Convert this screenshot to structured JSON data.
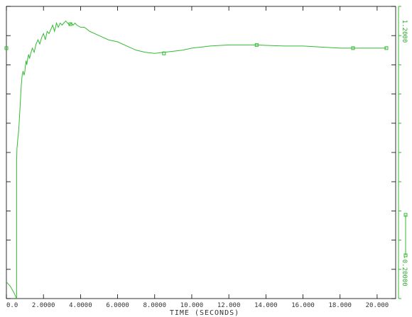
{
  "chart_data": {
    "type": "line",
    "title": "",
    "xlabel": "TIME (SECONDS)",
    "ylabel": "",
    "xlim": [
      0,
      21
    ],
    "ylim": [
      -0.2,
      1.2
    ],
    "grid": false,
    "x_ticks": [
      {
        "v": 0,
        "label": "0.0"
      },
      {
        "v": 2,
        "label": "2.0000"
      },
      {
        "v": 4,
        "label": "4.0000"
      },
      {
        "v": 6,
        "label": "6.0000"
      },
      {
        "v": 8,
        "label": "8.0000"
      },
      {
        "v": 10,
        "label": "10.000"
      },
      {
        "v": 12,
        "label": "12.000"
      },
      {
        "v": 14,
        "label": "14.000"
      },
      {
        "v": 16,
        "label": "16.000"
      },
      {
        "v": 18,
        "label": "18.000"
      },
      {
        "v": 20,
        "label": "20.000"
      }
    ],
    "right_axis": {
      "top_label": "1.2000",
      "bottom_label": "-0.20000"
    },
    "series": [
      {
        "color": "#33bb33",
        "x": [
          0.55,
          0.55,
          0.57,
          0.6,
          0.62,
          0.66,
          0.7,
          0.75,
          0.8,
          0.85,
          0.9,
          0.95,
          1.0,
          1.03,
          1.06,
          1.1,
          1.15,
          1.2,
          1.25,
          1.3,
          1.4,
          1.5,
          1.6,
          1.7,
          1.8,
          1.9,
          2.0,
          2.1,
          2.2,
          2.3,
          2.4,
          2.5,
          2.6,
          2.7,
          2.8,
          2.9,
          3.0,
          3.1,
          3.2,
          3.3,
          3.4,
          3.5,
          3.6,
          3.7,
          3.8,
          4.0,
          4.2,
          4.5,
          5.0,
          5.5,
          6.0,
          6.5,
          7.0,
          7.5,
          8.0,
          8.5,
          9.0,
          9.5,
          10.0,
          11.0,
          12.0,
          13.0,
          13.5,
          14.0,
          15.0,
          16.0,
          17.0,
          18.0,
          18.7,
          19.5,
          20.0,
          20.5
        ],
        "y": [
          -0.2,
          0.46,
          0.52,
          0.55,
          0.57,
          0.6,
          0.66,
          0.74,
          0.82,
          0.87,
          0.89,
          0.87,
          0.89,
          0.92,
          0.94,
          0.92,
          0.95,
          0.97,
          0.95,
          0.97,
          1.0,
          0.98,
          1.02,
          1.04,
          1.02,
          1.05,
          1.07,
          1.04,
          1.08,
          1.07,
          1.09,
          1.11,
          1.08,
          1.12,
          1.1,
          1.12,
          1.11,
          1.12,
          1.13,
          1.12,
          1.11,
          1.12,
          1.11,
          1.12,
          1.11,
          1.1,
          1.1,
          1.08,
          1.06,
          1.04,
          1.03,
          1.01,
          0.99,
          0.98,
          0.975,
          0.98,
          0.985,
          0.99,
          1.0,
          1.01,
          1.015,
          1.015,
          1.015,
          1.013,
          1.01,
          1.01,
          1.005,
          1.0,
          1.0,
          1.0,
          1.0,
          1.0
        ]
      },
      {
        "color": "#33bb33",
        "x": [
          0.0,
          0.1,
          0.2,
          0.3,
          0.4,
          0.5,
          0.55
        ],
        "y": [
          -0.12,
          -0.13,
          -0.14,
          -0.155,
          -0.17,
          -0.19,
          -0.2
        ]
      }
    ],
    "markers": [
      {
        "x": 3.45,
        "y": 1.115
      },
      {
        "x": 8.5,
        "y": 0.975
      },
      {
        "x": 13.5,
        "y": 1.015
      },
      {
        "x": 18.7,
        "y": 1.0
      },
      {
        "x": 20.5,
        "y": 1.0
      },
      {
        "x": 0.0,
        "y": 1.0
      }
    ]
  }
}
